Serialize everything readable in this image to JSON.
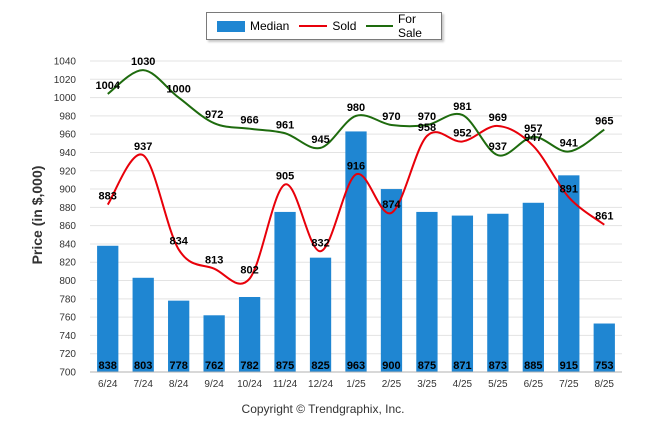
{
  "chart_data": {
    "type": "bar",
    "categories": [
      "6/24",
      "7/24",
      "8/24",
      "9/24",
      "10/24",
      "11/24",
      "12/24",
      "1/25",
      "2/25",
      "3/25",
      "4/25",
      "5/25",
      "6/25",
      "7/25",
      "8/25"
    ],
    "series": [
      {
        "name": "Median",
        "type": "bar",
        "color": "#1f86d2",
        "values": [
          838,
          803,
          778,
          762,
          782,
          875,
          825,
          963,
          900,
          875,
          871,
          873,
          885,
          915,
          753
        ]
      },
      {
        "name": "Sold",
        "type": "line",
        "color": "#e8000a",
        "values": [
          883,
          937,
          834,
          813,
          802,
          905,
          832,
          916,
          874,
          958,
          952,
          969,
          947,
          891,
          861
        ]
      },
      {
        "name": "For Sale",
        "type": "line",
        "color": "#1e6b0e",
        "values": [
          1004,
          1030,
          1000,
          972,
          966,
          961,
          945,
          980,
          970,
          970,
          981,
          937,
          957,
          941,
          965
        ]
      }
    ],
    "ylabel": "Price (in $,000)",
    "xlabel": "",
    "ylim": [
      700,
      1040
    ],
    "yticks": [
      700,
      720,
      740,
      760,
      780,
      800,
      820,
      840,
      860,
      880,
      900,
      920,
      940,
      960,
      980,
      1000,
      1020,
      1040
    ],
    "grid": true,
    "legend_position": "top"
  },
  "legend": {
    "median": "Median",
    "sold": "Sold",
    "for_sale": "For Sale"
  },
  "footer": "Copyright © Trendgraphix, Inc."
}
